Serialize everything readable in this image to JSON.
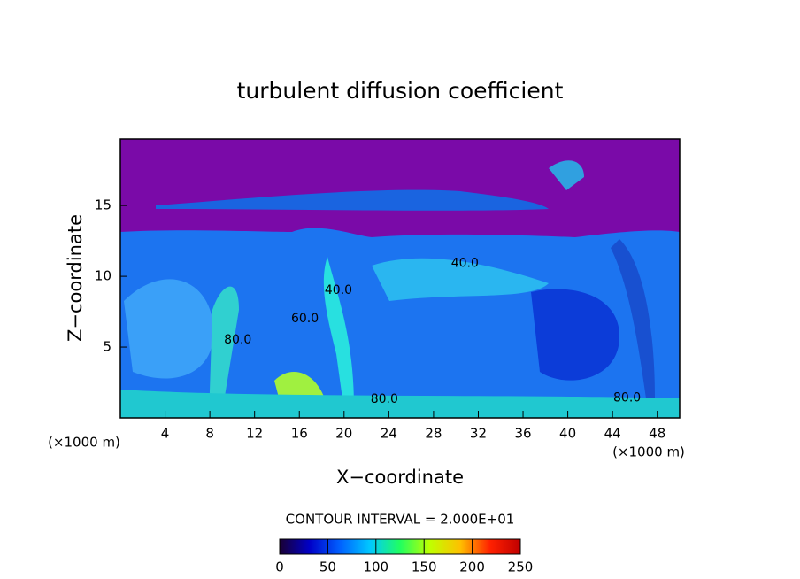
{
  "chart_data": {
    "type": "contour",
    "title": "turbulent diffusion coefficient",
    "xlabel": "X−coordinate",
    "ylabel": "Z−coordinate",
    "xunit": "(×1000 m)",
    "xunit_right": "(×1000 m)",
    "xlim": [
      0,
      50
    ],
    "ylim": [
      0,
      19.7
    ],
    "xticks": [
      4,
      8,
      12,
      16,
      20,
      24,
      28,
      32,
      36,
      40,
      44,
      48
    ],
    "yticks": [
      5,
      10,
      15
    ],
    "contour_labels": [
      {
        "text": "80.0",
        "x": 10.5,
        "y": 5.5
      },
      {
        "text": "60.0",
        "x": 16.5,
        "y": 7
      },
      {
        "text": "40.0",
        "x": 19.5,
        "y": 9
      },
      {
        "text": "40.0",
        "x": 30.8,
        "y": 10.9
      },
      {
        "text": "80.0",
        "x": 23.6,
        "y": 1.3
      },
      {
        "text": "80.0",
        "x": 45.3,
        "y": 1.4
      }
    ],
    "interval_text": "CONTOUR INTERVAL = 2.000E+01",
    "clim": [
      0,
      250
    ],
    "cticks": [
      0,
      50,
      100,
      150,
      200,
      250
    ],
    "colormap": [
      "#1a0033",
      "#0000c8",
      "#0060ff",
      "#00c8ff",
      "#20ff60",
      "#c0ff00",
      "#ffc000",
      "#ff2000",
      "#c00000"
    ]
  }
}
